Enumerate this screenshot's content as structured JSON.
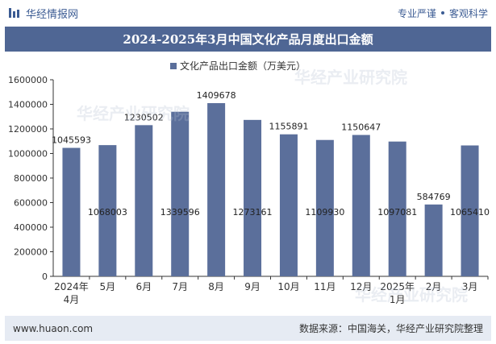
{
  "header": {
    "brand": "华经情报网",
    "tag1": "专业严谨",
    "tag2": "客观科学"
  },
  "title": "2024-2025年3月中国文化产品月度出口金额",
  "footer": {
    "url": "www.huaon.com",
    "source": "数据来源：中国海关，华经产业研究院整理"
  },
  "watermarks": [
    "华经产业研究院",
    "华经产业研究院",
    "华经产业研究院"
  ],
  "colors": {
    "bar": "#5b6f9b",
    "title_bg": "#4f6694",
    "footer_bg": "#e6ebf3",
    "brand": "#3b5b93"
  },
  "chart_data": {
    "type": "bar",
    "categories": [
      "2024年4月",
      "5月",
      "6月",
      "7月",
      "8月",
      "9月",
      "10月",
      "11月",
      "12月",
      "2025年1月",
      "2月",
      "3月"
    ],
    "series": [
      {
        "name": "文化产品出口金额（万美元）",
        "values": [
          1045593,
          1068003,
          1230502,
          1339596,
          1409678,
          1273161,
          1155891,
          1109930,
          1150647,
          1097081,
          584769,
          1065410
        ]
      }
    ],
    "ylim": [
      0,
      1600000
    ],
    "yticks": [
      0,
      200000,
      400000,
      600000,
      800000,
      1000000,
      1200000,
      1400000,
      1600000
    ],
    "label_inside": [
      false,
      true,
      false,
      true,
      false,
      true,
      false,
      true,
      false,
      true,
      false,
      true
    ],
    "legend": "top-center"
  }
}
